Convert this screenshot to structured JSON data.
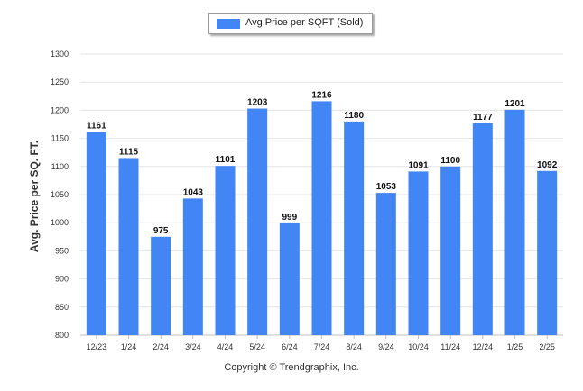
{
  "legend": {
    "label": "Avg Price per SQFT (Sold)",
    "color": "#4285f4"
  },
  "copyright": "Copyright © Trendgraphix, Inc.",
  "chart_data": {
    "type": "bar",
    "categories": [
      "12/23",
      "1/24",
      "2/24",
      "3/24",
      "4/24",
      "5/24",
      "6/24",
      "7/24",
      "8/24",
      "9/24",
      "10/24",
      "11/24",
      "12/24",
      "1/25",
      "2/25"
    ],
    "series": [
      {
        "name": "Avg Price per SQFT (Sold)",
        "values": [
          1161,
          1115,
          975,
          1043,
          1101,
          1203,
          999,
          1216,
          1180,
          1053,
          1091,
          1100,
          1177,
          1201,
          1092
        ]
      }
    ],
    "ylabel": "Avg. Price per SQ. FT.",
    "ylim": [
      800,
      1300
    ],
    "yticks": [
      800,
      850,
      900,
      950,
      1000,
      1050,
      1100,
      1150,
      1200,
      1250,
      1300
    ],
    "grid": true,
    "legend_position": "top-center"
  }
}
